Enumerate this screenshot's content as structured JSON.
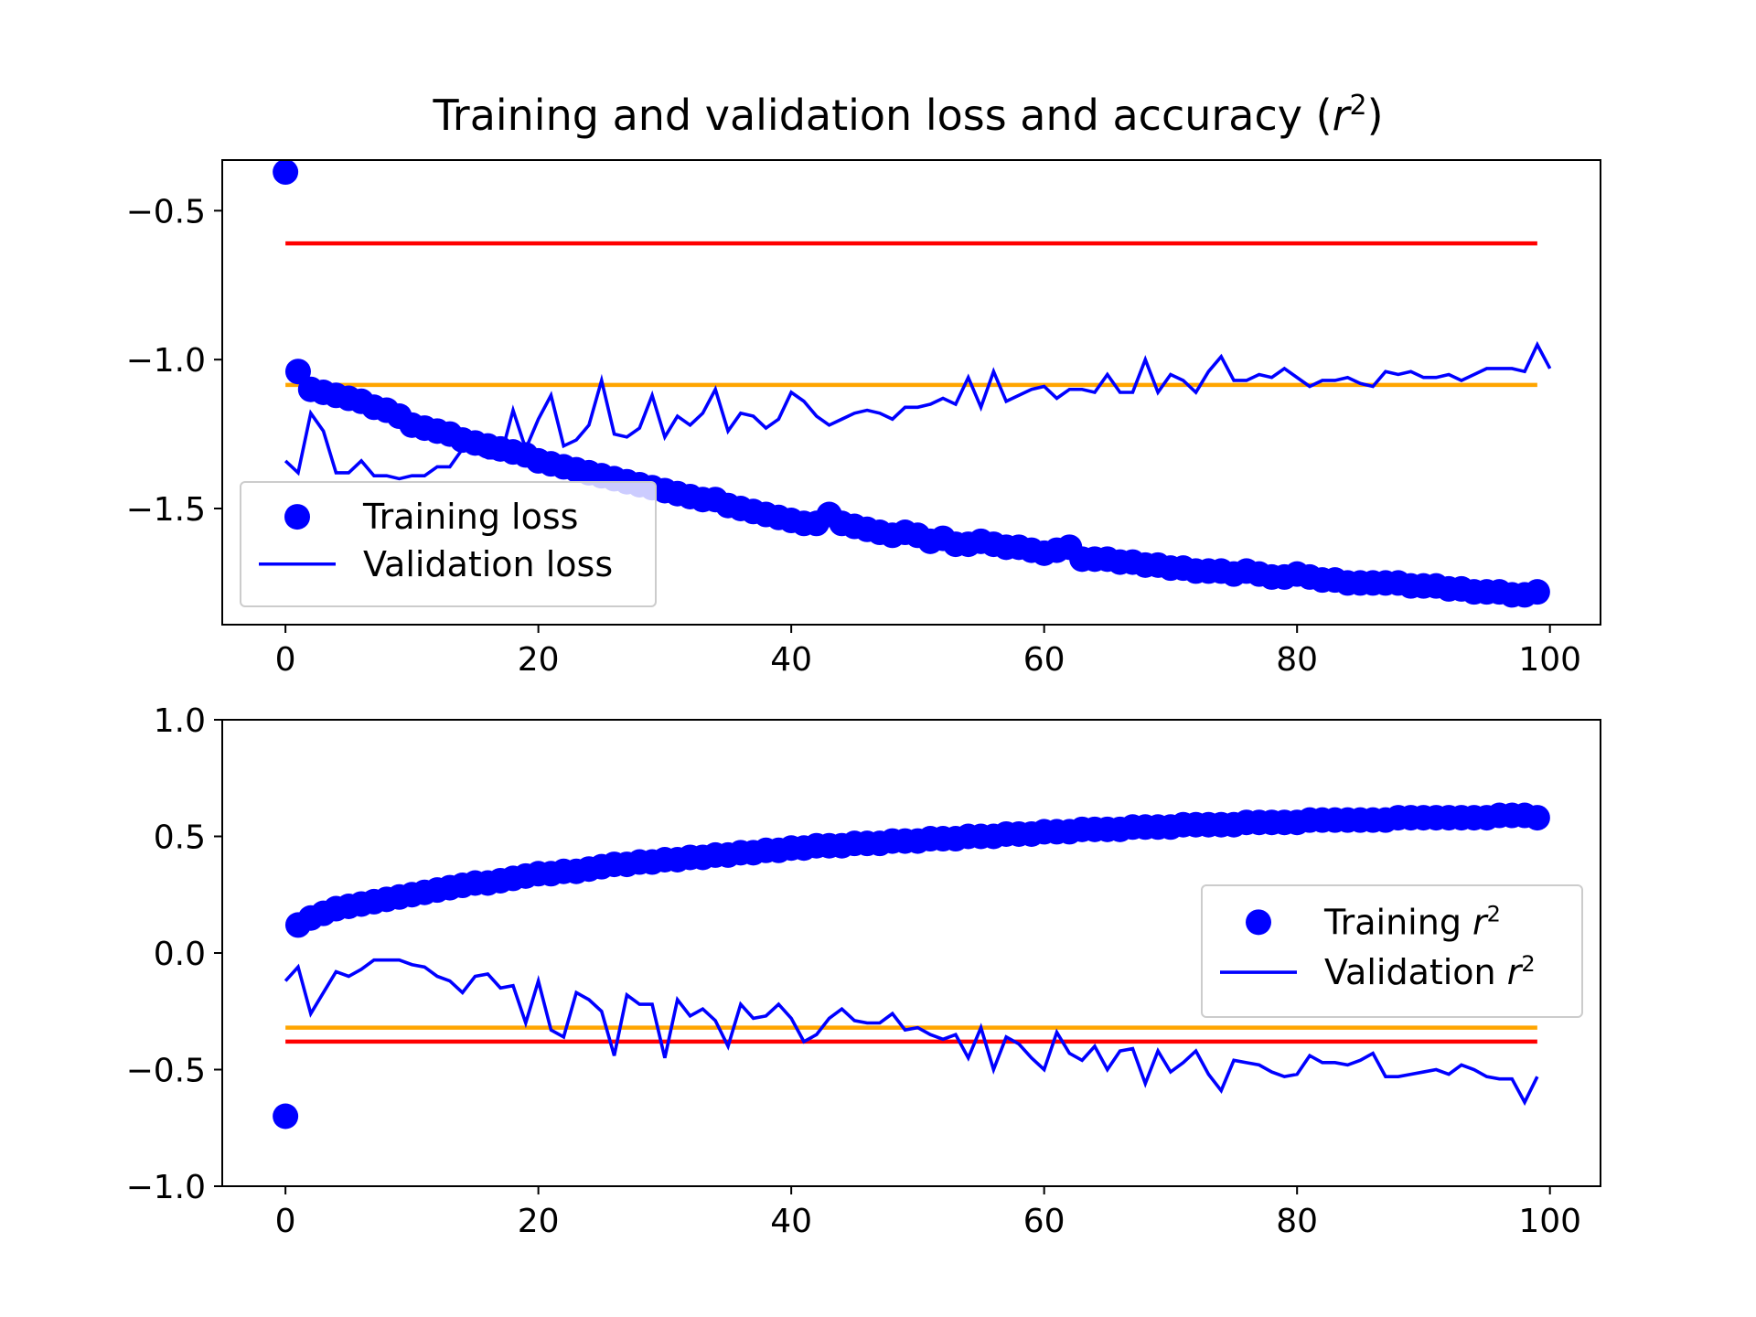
{
  "figure_title": "Training and validation loss and accuracy (r²)",
  "title_parts": {
    "pre": "Training and validation loss and accuracy (",
    "var": "r",
    "sup": "2",
    "post": ")"
  },
  "colors": {
    "series": "#0000ff",
    "ref_red": "#ff0000",
    "ref_orange": "#ffa500",
    "axes": "#000000",
    "background": "#ffffff"
  },
  "chart_data": [
    {
      "type": "line",
      "xlim": [
        -5,
        104
      ],
      "ylim": [
        -1.89,
        -0.33
      ],
      "x_ticks": [
        0,
        20,
        40,
        60,
        80,
        100
      ],
      "y_ticks": [
        -0.5,
        -1.0,
        -1.5
      ],
      "y_tick_labels": [
        "−0.5",
        "−1.0",
        "−1.5"
      ],
      "legend_position": "lower-left",
      "series": [
        {
          "name": "Training loss",
          "kind": "markers",
          "x_start": 0,
          "values": [
            -0.37,
            -1.04,
            -1.1,
            -1.11,
            -1.12,
            -1.13,
            -1.14,
            -1.16,
            -1.17,
            -1.19,
            -1.22,
            -1.23,
            -1.24,
            -1.25,
            -1.27,
            -1.28,
            -1.29,
            -1.3,
            -1.31,
            -1.32,
            -1.34,
            -1.35,
            -1.36,
            -1.37,
            -1.38,
            -1.39,
            -1.4,
            -1.41,
            -1.42,
            -1.43,
            -1.44,
            -1.45,
            -1.46,
            -1.47,
            -1.47,
            -1.49,
            -1.5,
            -1.51,
            -1.52,
            -1.53,
            -1.54,
            -1.55,
            -1.55,
            -1.52,
            -1.55,
            -1.56,
            -1.57,
            -1.58,
            -1.59,
            -1.58,
            -1.59,
            -1.61,
            -1.6,
            -1.62,
            -1.62,
            -1.61,
            -1.62,
            -1.63,
            -1.63,
            -1.64,
            -1.65,
            -1.64,
            -1.63,
            -1.67,
            -1.67,
            -1.67,
            -1.68,
            -1.68,
            -1.69,
            -1.69,
            -1.7,
            -1.7,
            -1.71,
            -1.71,
            -1.71,
            -1.72,
            -1.71,
            -1.72,
            -1.73,
            -1.73,
            -1.72,
            -1.73,
            -1.74,
            -1.74,
            -1.75,
            -1.75,
            -1.75,
            -1.75,
            -1.75,
            -1.76,
            -1.76,
            -1.76,
            -1.77,
            -1.77,
            -1.78,
            -1.78,
            -1.78,
            -1.79,
            -1.79,
            -1.78
          ]
        },
        {
          "name": "Validation loss",
          "kind": "line",
          "x_start": 0,
          "values": [
            -1.34,
            -1.38,
            -1.18,
            -1.24,
            -1.38,
            -1.38,
            -1.34,
            -1.39,
            -1.39,
            -1.4,
            -1.39,
            -1.39,
            -1.36,
            -1.36,
            -1.3,
            -1.31,
            -1.33,
            -1.33,
            -1.17,
            -1.3,
            -1.2,
            -1.12,
            -1.29,
            -1.27,
            -1.22,
            -1.07,
            -1.25,
            -1.26,
            -1.23,
            -1.12,
            -1.26,
            -1.19,
            -1.22,
            -1.18,
            -1.1,
            -1.24,
            -1.18,
            -1.19,
            -1.23,
            -1.2,
            -1.11,
            -1.14,
            -1.19,
            -1.22,
            -1.2,
            -1.18,
            -1.17,
            -1.18,
            -1.2,
            -1.16,
            -1.16,
            -1.15,
            -1.13,
            -1.15,
            -1.06,
            -1.16,
            -1.04,
            -1.14,
            -1.12,
            -1.1,
            -1.09,
            -1.13,
            -1.1,
            -1.1,
            -1.11,
            -1.05,
            -1.11,
            -1.11,
            -1.0,
            -1.11,
            -1.05,
            -1.07,
            -1.11,
            -1.04,
            -0.99,
            -1.07,
            -1.07,
            -1.05,
            -1.06,
            -1.03,
            -1.06,
            -1.09,
            -1.07,
            -1.07,
            -1.06,
            -1.08,
            -1.09,
            -1.04,
            -1.05,
            -1.04,
            -1.06,
            -1.06,
            -1.05,
            -1.07,
            -1.05,
            -1.03,
            -1.03,
            -1.03,
            -1.04,
            -0.95,
            -1.03
          ]
        }
      ],
      "reference_lines": [
        {
          "y": -0.61,
          "color": "#ff0000",
          "x_range": [
            0,
            99
          ]
        },
        {
          "y": -1.085,
          "color": "#ffa500",
          "x_range": [
            0,
            99
          ]
        }
      ]
    },
    {
      "type": "line",
      "xlim": [
        -5,
        104
      ],
      "ylim": [
        -1.0,
        1.0
      ],
      "x_ticks": [
        0,
        20,
        40,
        60,
        80,
        100
      ],
      "y_ticks": [
        1.0,
        0.5,
        0.0,
        -0.5,
        -1.0
      ],
      "y_tick_labels": [
        "1.0",
        "0.5",
        "0.0",
        "−0.5",
        "−1.0"
      ],
      "legend_position": "center-right",
      "series": [
        {
          "name": "Training r²",
          "name_parts": {
            "pre": "Training ",
            "var": "r",
            "sup": "2"
          },
          "kind": "markers",
          "x_start": 0,
          "values": [
            -0.7,
            0.12,
            0.15,
            0.17,
            0.19,
            0.2,
            0.21,
            0.22,
            0.23,
            0.24,
            0.25,
            0.26,
            0.27,
            0.28,
            0.29,
            0.3,
            0.3,
            0.31,
            0.32,
            0.33,
            0.34,
            0.34,
            0.35,
            0.35,
            0.36,
            0.37,
            0.38,
            0.38,
            0.39,
            0.39,
            0.4,
            0.4,
            0.41,
            0.41,
            0.42,
            0.42,
            0.43,
            0.43,
            0.44,
            0.44,
            0.45,
            0.45,
            0.46,
            0.46,
            0.46,
            0.47,
            0.47,
            0.47,
            0.48,
            0.48,
            0.48,
            0.49,
            0.49,
            0.49,
            0.5,
            0.5,
            0.5,
            0.51,
            0.51,
            0.51,
            0.52,
            0.52,
            0.52,
            0.53,
            0.53,
            0.53,
            0.53,
            0.54,
            0.54,
            0.54,
            0.54,
            0.55,
            0.55,
            0.55,
            0.55,
            0.55,
            0.56,
            0.56,
            0.56,
            0.56,
            0.56,
            0.57,
            0.57,
            0.57,
            0.57,
            0.57,
            0.57,
            0.57,
            0.58,
            0.58,
            0.58,
            0.58,
            0.58,
            0.58,
            0.58,
            0.58,
            0.59,
            0.59,
            0.59,
            0.58
          ]
        },
        {
          "name": "Validation r²",
          "name_parts": {
            "pre": "Validation ",
            "var": "r",
            "sup": "2"
          },
          "kind": "line",
          "x_start": 0,
          "values": [
            -0.12,
            -0.06,
            -0.26,
            -0.17,
            -0.08,
            -0.1,
            -0.07,
            -0.03,
            -0.03,
            -0.03,
            -0.05,
            -0.06,
            -0.1,
            -0.12,
            -0.17,
            -0.1,
            -0.09,
            -0.15,
            -0.14,
            -0.3,
            -0.12,
            -0.33,
            -0.36,
            -0.17,
            -0.2,
            -0.25,
            -0.44,
            -0.18,
            -0.22,
            -0.22,
            -0.45,
            -0.2,
            -0.27,
            -0.24,
            -0.29,
            -0.4,
            -0.22,
            -0.28,
            -0.27,
            -0.22,
            -0.28,
            -0.38,
            -0.35,
            -0.28,
            -0.24,
            -0.29,
            -0.3,
            -0.3,
            -0.26,
            -0.33,
            -0.32,
            -0.35,
            -0.37,
            -0.35,
            -0.45,
            -0.32,
            -0.5,
            -0.36,
            -0.39,
            -0.45,
            -0.5,
            -0.34,
            -0.43,
            -0.46,
            -0.4,
            -0.5,
            -0.42,
            -0.41,
            -0.56,
            -0.42,
            -0.51,
            -0.47,
            -0.42,
            -0.52,
            -0.59,
            -0.46,
            -0.47,
            -0.48,
            -0.51,
            -0.53,
            -0.52,
            -0.44,
            -0.47,
            -0.47,
            -0.48,
            -0.46,
            -0.43,
            -0.53,
            -0.53,
            -0.52,
            -0.51,
            -0.5,
            -0.52,
            -0.48,
            -0.5,
            -0.53,
            -0.54,
            -0.54,
            -0.64,
            -0.53
          ]
        }
      ],
      "reference_lines": [
        {
          "y": -0.32,
          "color": "#ffa500",
          "x_range": [
            0,
            99
          ]
        },
        {
          "y": -0.38,
          "color": "#ff0000",
          "x_range": [
            0,
            99
          ]
        }
      ]
    }
  ]
}
